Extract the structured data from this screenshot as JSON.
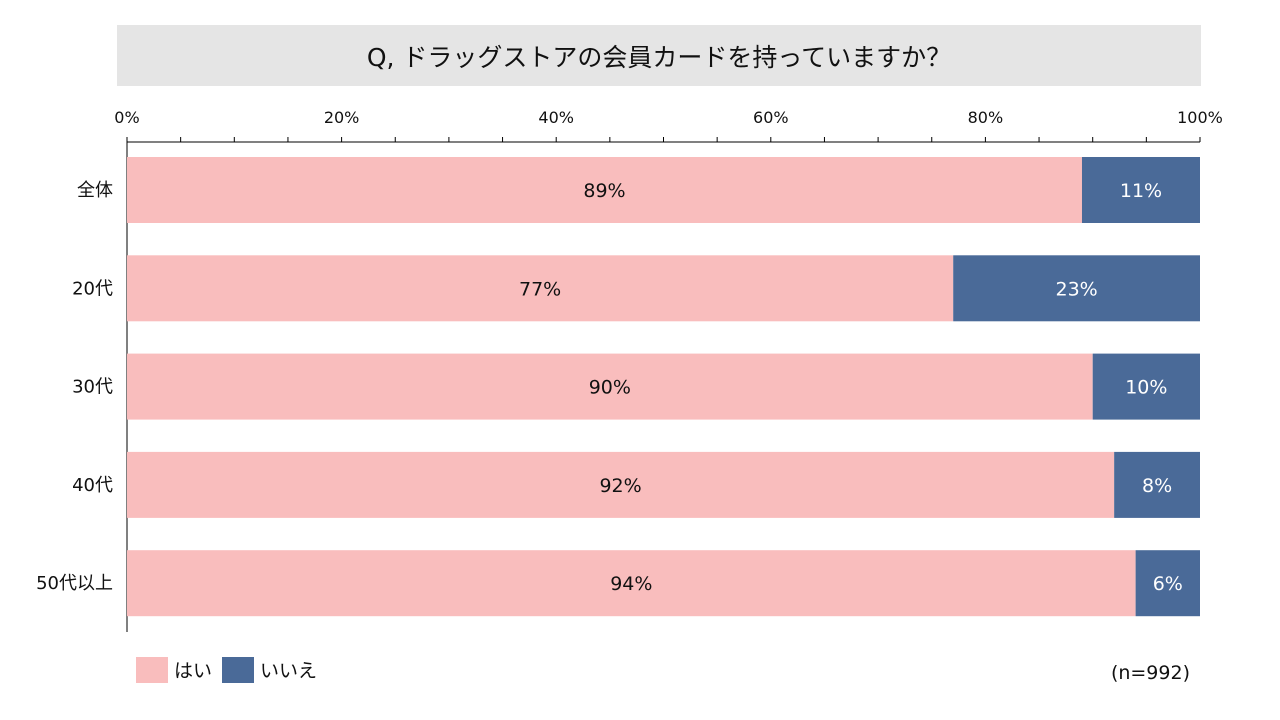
{
  "title": "Q, ドラッグストアの会員カードを持っていますか？",
  "sample_size": "(n=992)",
  "colors": {
    "yes": "#f9bdbd",
    "no": "#4a6a98",
    "axis": "#000000",
    "title_bg": "#e5e5e5"
  },
  "chart_data": {
    "type": "bar",
    "orientation": "horizontal",
    "stacked": true,
    "normalized_100": true,
    "categories": [
      "全体",
      "20代",
      "30代",
      "40代",
      "50代以上"
    ],
    "series": [
      {
        "name": "はい",
        "values": [
          89,
          77,
          90,
          92,
          94
        ],
        "labels": [
          "89%",
          "77%",
          "90%",
          "92%",
          "94%"
        ]
      },
      {
        "name": "いいえ",
        "values": [
          11,
          23,
          10,
          8,
          6
        ],
        "labels": [
          "11%",
          "23%",
          "10%",
          "8%",
          "6%"
        ]
      }
    ],
    "x_ticks": [
      "0%",
      "20%",
      "40%",
      "60%",
      "80%",
      "100%"
    ],
    "xlim": [
      0,
      100
    ],
    "legend_position": "bottom-left",
    "grid": false
  }
}
